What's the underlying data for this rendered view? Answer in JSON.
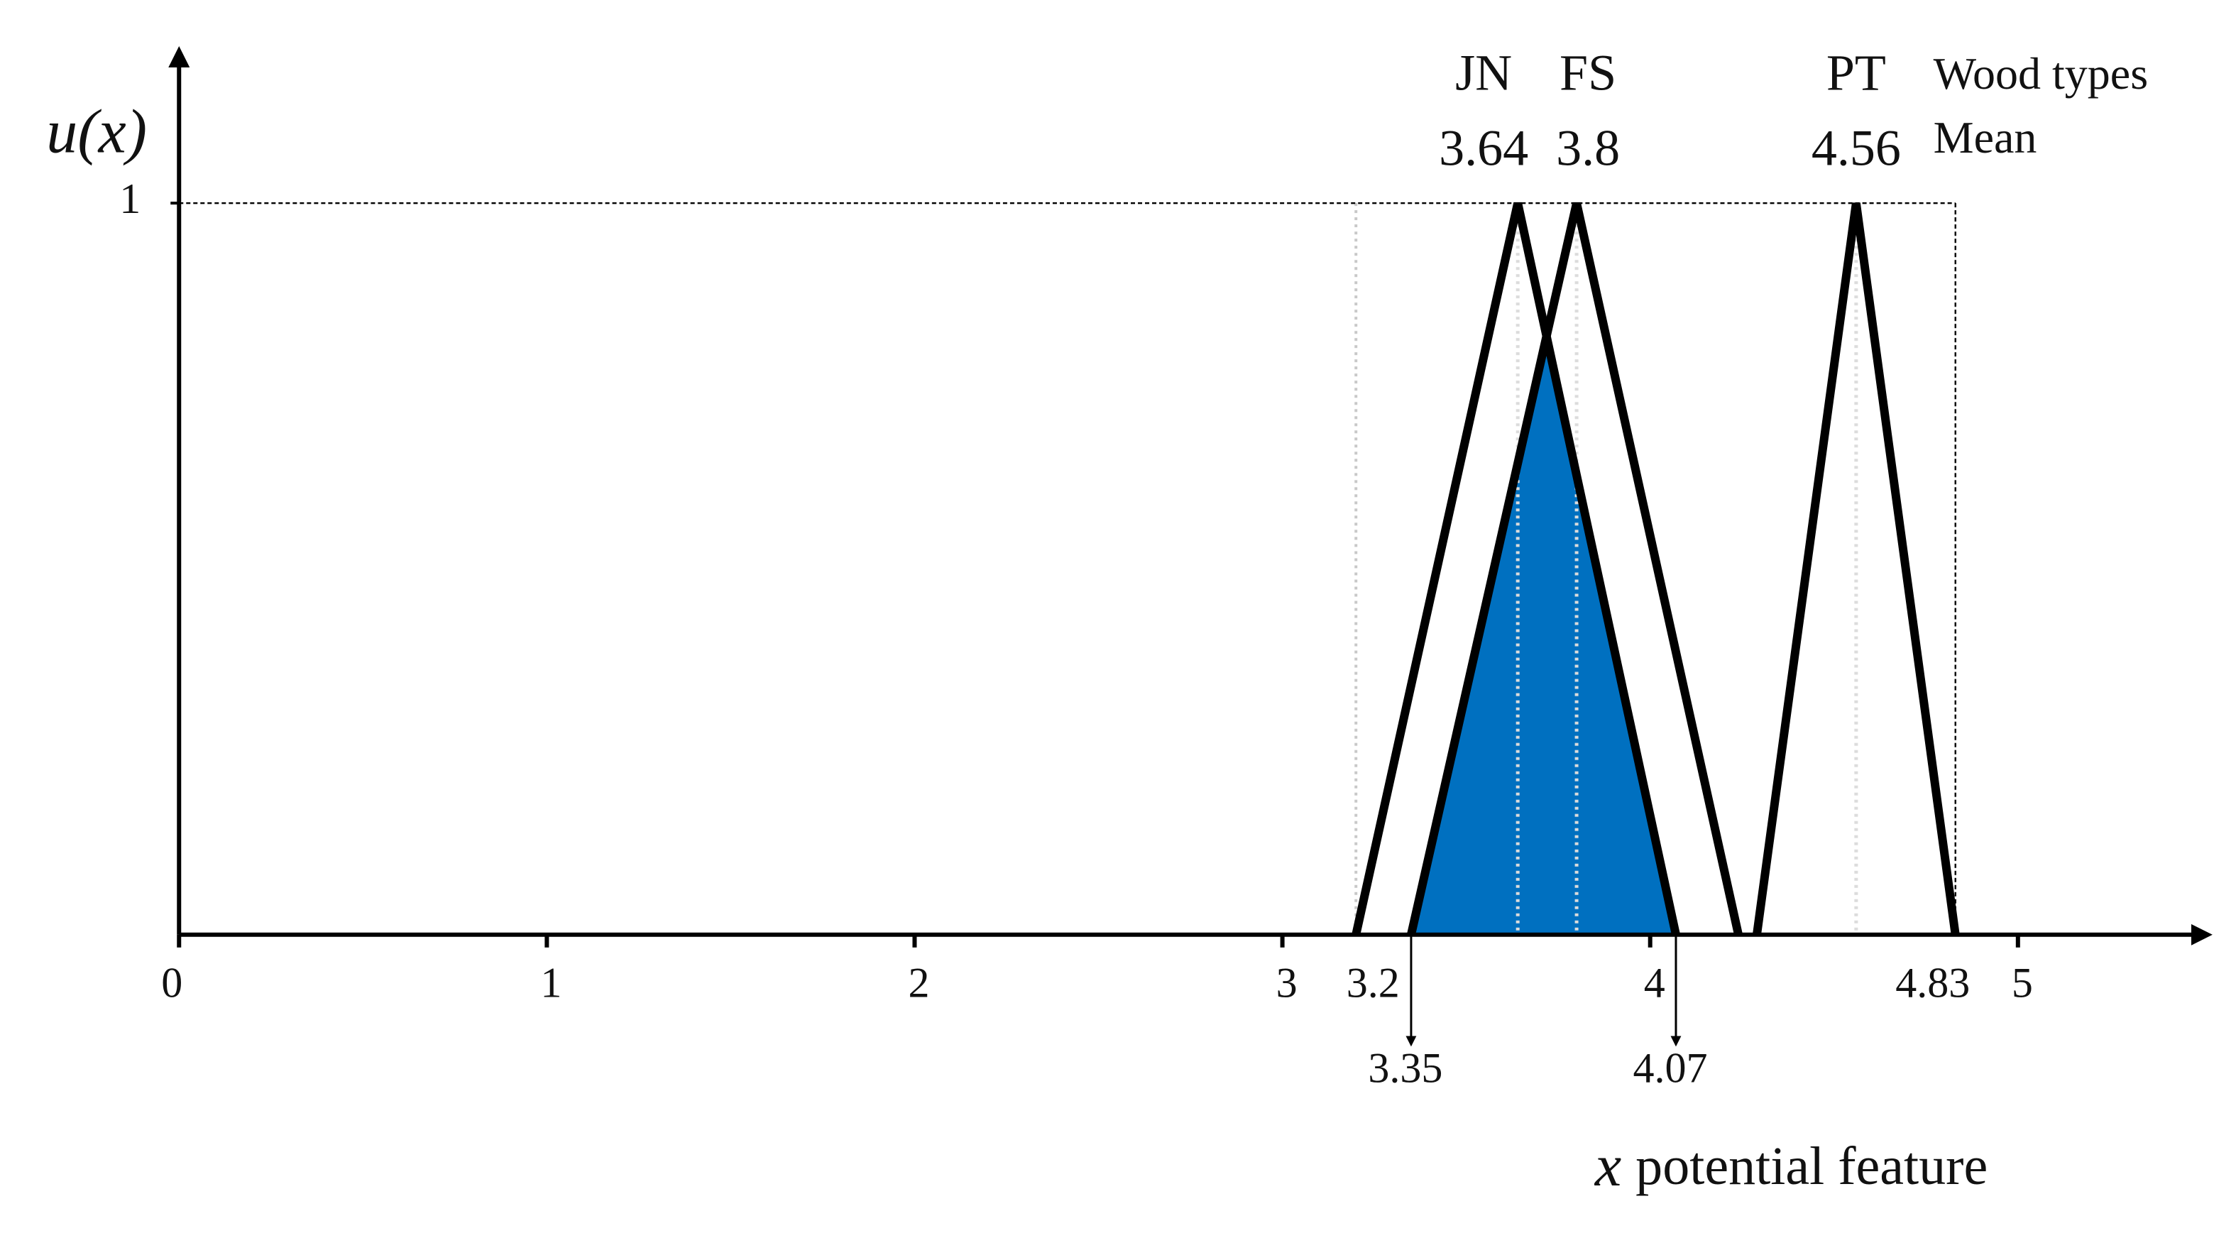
{
  "chart_data": {
    "type": "line",
    "ylabel": "u(x)",
    "xlabel_symbol": "x",
    "xlabel": "potential  feature",
    "series_heading": "Wood types",
    "peak_heading": "Mean",
    "xlim": [
      0,
      5.5
    ],
    "ylim": [
      0,
      1.2
    ],
    "xticks": [
      0,
      1,
      2,
      3,
      4,
      5
    ],
    "yticks": [
      1
    ],
    "overlap_color": "#0070c0",
    "series": [
      {
        "name": "JN",
        "color": "#000000",
        "x": [
          3.2,
          3.64,
          4.07
        ],
        "values": [
          0,
          1,
          0
        ]
      },
      {
        "name": "FS",
        "color": "#000000",
        "x": [
          3.35,
          3.8,
          4.24
        ],
        "values": [
          0,
          1,
          0
        ]
      },
      {
        "name": "PT",
        "color": "#000000",
        "x": [
          4.29,
          4.56,
          4.83
        ],
        "values": [
          0,
          1,
          0
        ]
      }
    ]
  }
}
